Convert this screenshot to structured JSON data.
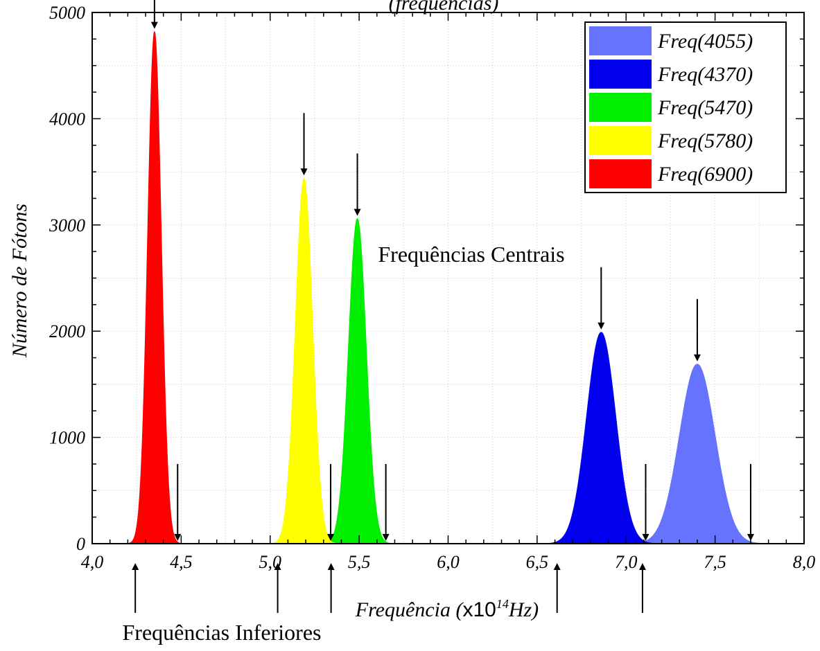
{
  "chart_data": {
    "type": "area",
    "title": "(frequências)",
    "xlabel_prefix": "Frequência (",
    "xlabel_unit_main": "x10",
    "xlabel_unit_exp": "14",
    "xlabel_unit_suffix": "Hz)",
    "ylabel": "Número de Fótons",
    "xlim": [
      4.0,
      8.0
    ],
    "ylim": [
      0,
      5000
    ],
    "x_ticks": [
      "4,0",
      "4,5",
      "5,0",
      "5,5",
      "6,0",
      "6,5",
      "7,0",
      "7,5",
      "8,0"
    ],
    "y_ticks": [
      "0",
      "1000",
      "2000",
      "3000",
      "4000",
      "5000"
    ],
    "grid": true,
    "legend_position": "top-right",
    "series": [
      {
        "name": "Freq(4055)",
        "color": "#6673ff",
        "center": 7.4,
        "peak": 1690,
        "lower": 7.1,
        "upper": 7.7
      },
      {
        "name": "Freq(4370)",
        "color": "#0000ee",
        "center": 6.86,
        "peak": 1990,
        "lower": 6.62,
        "upper": 7.11
      },
      {
        "name": "Freq(5470)",
        "color": "#00ee00",
        "center": 5.49,
        "peak": 3060,
        "lower": 5.35,
        "upper": 5.65
      },
      {
        "name": "Freq(5780)",
        "color": "#ffff00",
        "center": 5.19,
        "peak": 3440,
        "lower": 5.05,
        "upper": 5.34
      },
      {
        "name": "Freq(6900)",
        "color": "#ff0000",
        "center": 4.35,
        "peak": 4820,
        "lower": 4.25,
        "upper": 4.48
      }
    ],
    "annotations": {
      "central_label": "Frequências Centrais",
      "inferior_label": "Frequências Inferiores"
    }
  }
}
